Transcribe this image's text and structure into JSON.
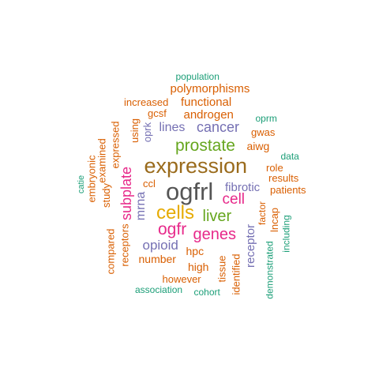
{
  "words": [
    {
      "text": "ogfrl",
      "color": "#555555",
      "vertical": false
    },
    {
      "text": "expression",
      "color": "#9a6b1c",
      "vertical": false
    },
    {
      "text": "cells",
      "color": "#e6ab02",
      "vertical": false
    },
    {
      "text": "prostate",
      "color": "#66a61e",
      "vertical": false
    },
    {
      "text": "liver",
      "color": "#66a61e",
      "vertical": false
    },
    {
      "text": "ogfr",
      "color": "#e7298a",
      "vertical": false
    },
    {
      "text": "genes",
      "color": "#e7298a",
      "vertical": false
    },
    {
      "text": "cell",
      "color": "#e7298a",
      "vertical": false
    },
    {
      "text": "subplate",
      "color": "#e7298a",
      "vertical": true
    },
    {
      "text": "cancer",
      "color": "#7570b3",
      "vertical": false
    },
    {
      "text": "polymorphisms",
      "color": "#d95f02",
      "vertical": false
    },
    {
      "text": "androgen",
      "color": "#d95f02",
      "vertical": false
    },
    {
      "text": "functional",
      "color": "#d95f02",
      "vertical": false
    },
    {
      "text": "lines",
      "color": "#7570b3",
      "vertical": false
    },
    {
      "text": "fibrotic",
      "color": "#7570b3",
      "vertical": false
    },
    {
      "text": "opioid",
      "color": "#7570b3",
      "vertical": false
    },
    {
      "text": "mrna",
      "color": "#7570b3",
      "vertical": true
    },
    {
      "text": "receptor",
      "color": "#7570b3",
      "vertical": true
    },
    {
      "text": "oprk",
      "color": "#7570b3",
      "vertical": true
    },
    {
      "text": "aiwg",
      "color": "#d95f02",
      "vertical": false
    },
    {
      "text": "number",
      "color": "#d95f02",
      "vertical": false
    },
    {
      "text": "high",
      "color": "#d95f02",
      "vertical": false
    },
    {
      "text": "hpc",
      "color": "#d95f02",
      "vertical": false
    },
    {
      "text": "increased",
      "color": "#d95f02",
      "vertical": false
    },
    {
      "text": "population",
      "color": "#1b9e77",
      "vertical": false
    },
    {
      "text": "gcsf",
      "color": "#d95f02",
      "vertical": false
    },
    {
      "text": "gwas",
      "color": "#d95f02",
      "vertical": false
    },
    {
      "text": "oprm",
      "color": "#1b9e77",
      "vertical": false
    },
    {
      "text": "using",
      "color": "#d95f02",
      "vertical": true
    },
    {
      "text": "expressed",
      "color": "#d95f02",
      "vertical": true
    },
    {
      "text": "examined",
      "color": "#d95f02",
      "vertical": true
    },
    {
      "text": "study",
      "color": "#d95f02",
      "vertical": true
    },
    {
      "text": "embryonic",
      "color": "#d95f02",
      "vertical": true
    },
    {
      "text": "catie",
      "color": "#1b9e77",
      "vertical": true
    },
    {
      "text": "data",
      "color": "#1b9e77",
      "vertical": false
    },
    {
      "text": "role",
      "color": "#d95f02",
      "vertical": false
    },
    {
      "text": "results",
      "color": "#d95f02",
      "vertical": false
    },
    {
      "text": "patients",
      "color": "#d95f02",
      "vertical": false
    },
    {
      "text": "factor",
      "color": "#d95f02",
      "vertical": true
    },
    {
      "text": "lncap",
      "color": "#d95f02",
      "vertical": true
    },
    {
      "text": "including",
      "color": "#1b9e77",
      "vertical": true
    },
    {
      "text": "demonstrated",
      "color": "#1b9e77",
      "vertical": true
    },
    {
      "text": "identified",
      "color": "#d95f02",
      "vertical": true
    },
    {
      "text": "tissue",
      "color": "#d95f02",
      "vertical": true
    },
    {
      "text": "ccl",
      "color": "#d95f02",
      "vertical": false
    },
    {
      "text": "receptors",
      "color": "#d95f02",
      "vertical": true
    },
    {
      "text": "compared",
      "color": "#d95f02",
      "vertical": true
    },
    {
      "text": "however",
      "color": "#d95f02",
      "vertical": false
    },
    {
      "text": "association",
      "color": "#1b9e77",
      "vertical": false
    },
    {
      "text": "cohort",
      "color": "#1b9e77",
      "vertical": false
    }
  ]
}
